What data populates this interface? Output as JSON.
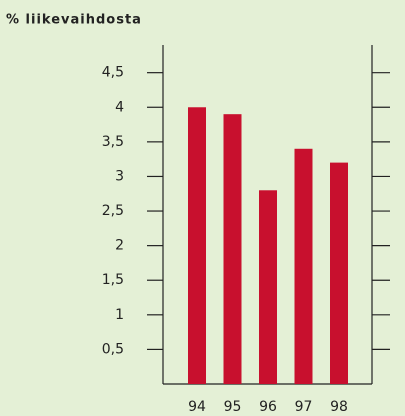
{
  "chart_data": {
    "type": "bar",
    "title": "% liikevaihdosta",
    "categories": [
      "94",
      "95",
      "96",
      "97",
      "98"
    ],
    "values": [
      4.0,
      3.9,
      2.8,
      3.4,
      3.2
    ],
    "color": "#c8102e",
    "ylim": [
      0,
      4.9
    ],
    "yticks": [
      {
        "value": 0.5,
        "label": "0,5"
      },
      1,
      {
        "value": 1.5,
        "label": "1,5"
      },
      2,
      {
        "value": 2.5,
        "label": "2,5"
      },
      3,
      {
        "value": 3.5,
        "label": "3,5"
      },
      4,
      {
        "value": 4.5,
        "label": "4,5"
      }
    ]
  }
}
